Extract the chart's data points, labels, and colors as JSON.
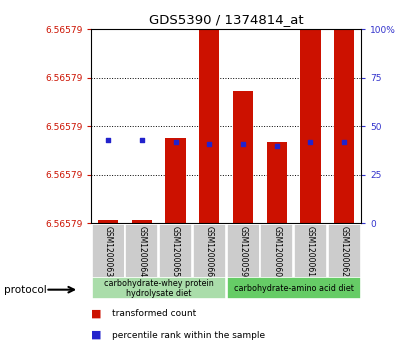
{
  "title": "GDS5390 / 1374814_at",
  "samples": [
    "GSM1200063",
    "GSM1200064",
    "GSM1200065",
    "GSM1200066",
    "GSM1200059",
    "GSM1200060",
    "GSM1200061",
    "GSM1200062"
  ],
  "red_bar_heights": [
    1.5,
    1.5,
    44,
    100,
    68,
    42,
    100,
    100
  ],
  "blue_dot_y": [
    43,
    43,
    42,
    41,
    41,
    40,
    42,
    42
  ],
  "blue_show": [
    true,
    true,
    true,
    true,
    true,
    true,
    true,
    true
  ],
  "ytick_positions": [
    0,
    25,
    50,
    75,
    100
  ],
  "ylim": [
    0,
    100
  ],
  "bar_color": "#cc1100",
  "blue_color": "#2222cc",
  "left_tick_color": "#cc1100",
  "right_tick_color": "#3333cc",
  "protocol_groups": [
    {
      "label": "carbohydrate-whey protein\nhydrolysate diet",
      "start": 0,
      "end": 4,
      "color": "#aaddaa"
    },
    {
      "label": "carbohydrate-amino acid diet",
      "start": 4,
      "end": 8,
      "color": "#66cc66"
    }
  ],
  "protocol_label": "protocol",
  "legend_items": [
    {
      "color": "#cc1100",
      "label": "transformed count"
    },
    {
      "color": "#2222cc",
      "label": "percentile rank within the sample"
    }
  ],
  "gray_box_color": "#cccccc",
  "white_color": "#ffffff"
}
